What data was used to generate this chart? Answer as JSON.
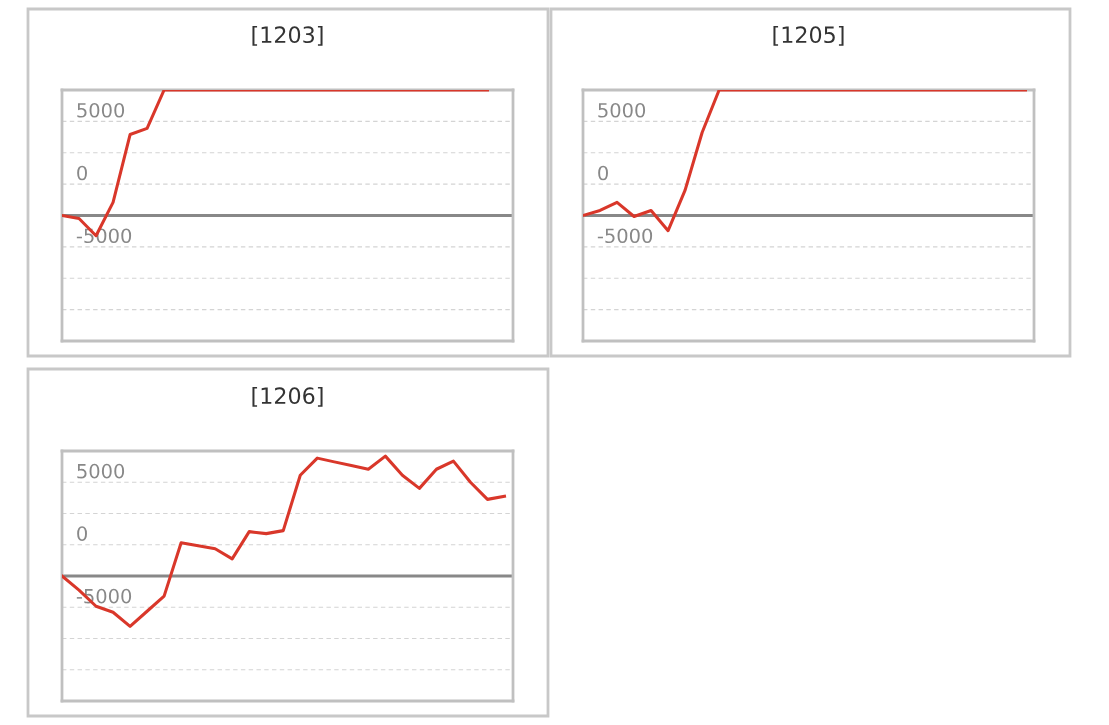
{
  "chart_data": [
    {
      "type": "line",
      "title": "[1203]",
      "categories": [
        null,
        null,
        null,
        null,
        null,
        null,
        null,
        null,
        null,
        null,
        null,
        null,
        null,
        null,
        null,
        null,
        null,
        null,
        null,
        null,
        null,
        null,
        null,
        null,
        null,
        null,
        null
      ],
      "ylim": [
        -12500,
        7500
      ],
      "yticks": [
        {
          "value": -12500,
          "label": null
        },
        {
          "value": -10000,
          "label": null
        },
        {
          "value": -7500,
          "label": null
        },
        -5000,
        {
          "value": -2500,
          "label": null
        },
        0,
        {
          "value": 2500,
          "label": null
        },
        5000,
        {
          "value": 7500,
          "label": null
        }
      ],
      "grid": "y",
      "ref_lines": [
        {
          "axis": "y",
          "value": -2500,
          "color": "#888888"
        }
      ],
      "tick_labels": "y",
      "series": [
        {
          "color": "#d9372a",
          "values": [
            -2500,
            -2740,
            -4110,
            -1450,
            3950,
            4440,
            7500,
            7500,
            7500,
            7500,
            7500,
            7500,
            7500,
            7500,
            7500,
            7500,
            7500,
            7500,
            7500,
            7500,
            7500,
            7500,
            7500,
            7500,
            7500,
            7500,
            null
          ]
        }
      ]
    },
    {
      "type": "line",
      "title": "[1205]",
      "categories": [
        null,
        null,
        null,
        null,
        null,
        null,
        null,
        null,
        null,
        null,
        null,
        null,
        null,
        null,
        null,
        null,
        null,
        null,
        null,
        null,
        null,
        null,
        null,
        null,
        null,
        null,
        null
      ],
      "ylim": [
        -12500,
        7500
      ],
      "yticks": [
        {
          "value": -12500,
          "label": null
        },
        {
          "value": -10000,
          "label": null
        },
        {
          "value": -7500,
          "label": null
        },
        -5000,
        {
          "value": -2500,
          "label": null
        },
        0,
        {
          "value": 2500,
          "label": null
        },
        5000,
        {
          "value": 7500,
          "label": null
        }
      ],
      "grid": "y",
      "ref_lines": [
        {
          "axis": "y",
          "value": -2500,
          "color": "#888888"
        }
      ],
      "tick_labels": "y",
      "series": [
        {
          "color": "#d9372a",
          "values": [
            -2500,
            -2100,
            -1450,
            -2580,
            -2100,
            -3710,
            -480,
            4110,
            7500,
            7500,
            7500,
            7500,
            7500,
            7500,
            7500,
            7500,
            7500,
            7500,
            7500,
            7500,
            7500,
            7500,
            7500,
            7500,
            7500,
            7500,
            7500
          ]
        }
      ]
    },
    {
      "type": "line",
      "title": "[1206]",
      "categories": [
        null,
        null,
        null,
        null,
        null,
        null,
        null,
        null,
        null,
        null,
        null,
        null,
        null,
        null,
        null,
        null,
        null,
        null,
        null,
        null,
        null,
        null,
        null,
        null,
        null,
        null,
        null
      ],
      "ylim": [
        -12500,
        7500
      ],
      "yticks": [
        {
          "value": -12500,
          "label": null
        },
        {
          "value": -10000,
          "label": null
        },
        {
          "value": -7500,
          "label": null
        },
        -5000,
        {
          "value": -2500,
          "label": null
        },
        0,
        {
          "value": 2500,
          "label": null
        },
        5000,
        {
          "value": 7500,
          "label": null
        }
      ],
      "grid": "y",
      "ref_lines": [
        {
          "axis": "y",
          "value": -2500,
          "color": "#888888"
        }
      ],
      "tick_labels": "y",
      "series": [
        {
          "color": "#d9372a",
          "values": [
            -2500,
            -3630,
            -4920,
            -5400,
            -6530,
            -5320,
            -4110,
            160,
            -80,
            -320,
            -1130,
            1050,
            890,
            1130,
            5560,
            6930,
            6630,
            6340,
            6040,
            7090,
            5560,
            4510,
            6040,
            6690,
            5000,
            3630,
            3870
          ]
        }
      ]
    }
  ]
}
